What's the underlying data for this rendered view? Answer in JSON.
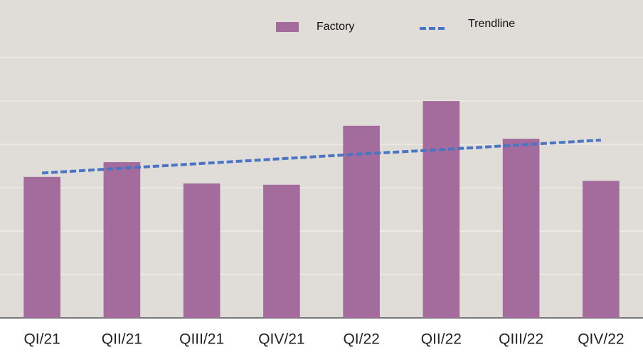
{
  "chart_data": {
    "type": "bar",
    "categories": [
      "QI/21",
      "QII/21",
      "QIII/21",
      "QIV/21",
      "QI/22",
      "QII/22",
      "QIII/22",
      "QIV/22"
    ],
    "series": [
      {
        "name": "Factory",
        "type": "bar",
        "color": "#a46c9c",
        "values": [
          3.25,
          3.59,
          3.1,
          3.07,
          4.43,
          5.0,
          4.13,
          3.16
        ]
      },
      {
        "name": "Trendline",
        "type": "line",
        "dashed": true,
        "color": "#4a74c4",
        "values": [
          3.34,
          3.45,
          3.56,
          3.67,
          3.78,
          3.88,
          3.99,
          4.1
        ]
      }
    ],
    "ylim": [
      0,
      7.33
    ],
    "yticks": [
      0,
      1,
      2,
      3,
      4,
      5,
      6
    ],
    "grid": true,
    "legend": "top"
  }
}
